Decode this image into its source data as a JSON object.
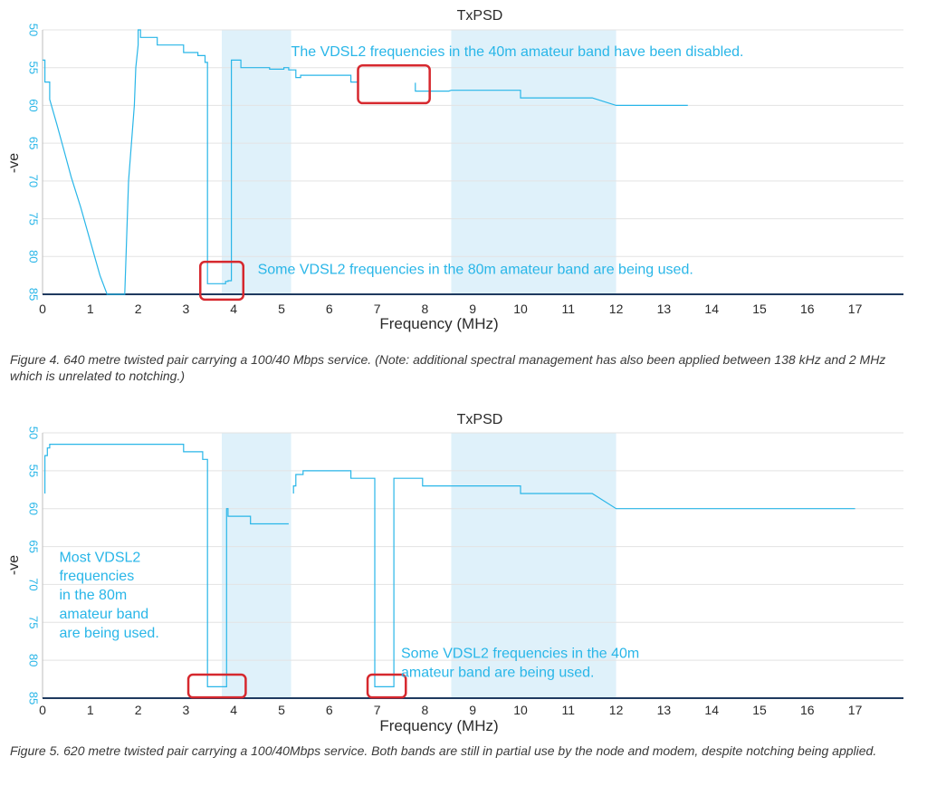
{
  "charts": [
    {
      "caption": "Figure 4. 640 metre twisted pair carrying a 100/40 Mbps service. (Note: additional spectral management has also been applied between 138 kHz and 2 MHz which is unrelated to notching.)"
    },
    {
      "caption": "Figure 5. 620 metre twisted pair carrying a 100/40Mbps service. Both bands are still in partial use by the node and modem, despite notching being applied."
    }
  ],
  "colors": {
    "line": "#29b6e8",
    "band": "#dff1fa",
    "highlight": "#d6282e",
    "axis": "#1f3a5f",
    "text": "#2a2a2a",
    "annotation": "#29b6e8"
  },
  "chart_data": [
    {
      "type": "line",
      "title": "TxPSD",
      "xlabel": "Frequency (MHz)",
      "ylabel": "-ve",
      "xlim": [
        0,
        18
      ],
      "ylim": [
        85,
        50
      ],
      "xticks": [
        "0",
        "1",
        "2",
        "3",
        "4",
        "5",
        "6",
        "7",
        "8",
        "9",
        "10",
        "11",
        "12",
        "13",
        "14",
        "15",
        "16",
        "17"
      ],
      "yticks": [
        "50",
        "55",
        "60",
        "65",
        "70",
        "75",
        "80",
        "85"
      ],
      "grid": "horizontal",
      "shaded_bands": [
        [
          3.75,
          5.2
        ],
        [
          8.55,
          12
        ]
      ],
      "annotations": [
        {
          "text": "The VDSL2 frequencies in the 40m amateur band have been disabled.",
          "x": 5.2,
          "y": 53.5
        },
        {
          "text": "Some VDSL2 frequencies in the 80m amateur band are being used.",
          "x": 4.5,
          "y": 82.3
        }
      ],
      "highlight_boxes": [
        [
          6.6,
          8.1,
          54.7,
          59.7
        ],
        [
          3.3,
          4.2,
          80.7,
          85.7
        ]
      ],
      "series": [
        {
          "x": [
            0,
            0.05,
            0.05,
            0.15,
            0.15,
            0.3,
            0.45,
            0.6,
            0.8,
            1.0,
            1.2,
            1.35,
            1.38,
            1.38,
            1.72,
            1.72,
            1.8,
            1.92,
            1.95,
            2.0,
            2.0,
            2.05,
            2.05,
            2.4,
            2.4,
            2.95,
            2.95,
            3.25,
            3.25,
            3.4,
            3.4,
            3.45,
            3.45,
            3.58,
            3.62,
            3.83,
            3.83,
            3.88,
            3.88,
            3.95,
            3.95,
            4.15,
            4.15,
            4.75,
            4.75,
            5.05,
            5.05,
            5.15,
            5.15,
            5.3,
            5.3,
            5.4,
            5.4,
            6.45,
            6.45,
            6.6
          ],
          "y": [
            54,
            54,
            56.9,
            56.9,
            59.2,
            62.5,
            66,
            69.5,
            73.5,
            78,
            82.5,
            85,
            85,
            85,
            85,
            85,
            70,
            60,
            55,
            52,
            50,
            50,
            51,
            51,
            52,
            52,
            53,
            53,
            53.4,
            53.4,
            54.3,
            54.3,
            83.6,
            83.6,
            83.6,
            83.6,
            83.3,
            83.3,
            83.2,
            83.2,
            54,
            54,
            55,
            55,
            55.2,
            55.2,
            55,
            55,
            55.3,
            55.3,
            56.3,
            56.3,
            56,
            56,
            56.9,
            56.9
          ]
        },
        {
          "x": [
            7.8,
            7.8,
            8.5,
            8.55,
            10,
            10,
            11.2,
            11.5,
            12,
            13.5
          ],
          "y": [
            57,
            58.1,
            58.1,
            58,
            58,
            59,
            59,
            59,
            60,
            60
          ]
        }
      ]
    },
    {
      "type": "line",
      "title": "TxPSD",
      "xlabel": "Frequency (MHz)",
      "ylabel": "-ve",
      "xlim": [
        0,
        18
      ],
      "ylim": [
        85,
        50
      ],
      "xticks": [
        "0",
        "1",
        "2",
        "3",
        "4",
        "5",
        "6",
        "7",
        "8",
        "9",
        "10",
        "11",
        "12",
        "13",
        "14",
        "15",
        "16",
        "17"
      ],
      "yticks": [
        "50",
        "55",
        "60",
        "65",
        "70",
        "75",
        "80",
        "85"
      ],
      "grid": "horizontal",
      "shaded_bands": [
        [
          3.75,
          5.2
        ],
        [
          8.55,
          12
        ]
      ],
      "annotations": [
        {
          "text": "Most VDSL2",
          "x": 0.35,
          "y": 67
        },
        {
          "text": "frequencies",
          "x": 0.35,
          "y": 69.5
        },
        {
          "text": "in the 80m",
          "x": 0.35,
          "y": 72
        },
        {
          "text": "amateur band",
          "x": 0.35,
          "y": 74.5
        },
        {
          "text": "are being used.",
          "x": 0.35,
          "y": 77
        },
        {
          "text": "Some VDSL2 frequencies in the 40m",
          "x": 7.5,
          "y": 79.7
        },
        {
          "text": "amateur band are being used.",
          "x": 7.5,
          "y": 82.2
        }
      ],
      "highlight_boxes": [
        [
          3.05,
          4.25,
          81.9,
          84.9
        ],
        [
          6.8,
          7.6,
          81.9,
          84.9
        ]
      ],
      "series": [
        {
          "x": [
            0.05,
            0.05,
            0.1,
            0.1,
            0.15,
            0.15,
            2.95,
            2.95,
            3.35,
            3.35,
            3.45,
            3.45,
            3.85,
            3.85,
            3.88,
            3.88,
            4.35,
            4.35,
            5.15
          ],
          "y": [
            58,
            53,
            53,
            52,
            52,
            51.5,
            51.5,
            52.5,
            52.5,
            53.5,
            53.5,
            83.5,
            83.5,
            60,
            60,
            61,
            61,
            62,
            62
          ]
        },
        {
          "x": [
            5.25,
            5.25,
            5.3,
            5.3,
            5.45,
            5.45,
            6.45,
            6.45,
            6.95,
            6.95,
            7.25,
            7.25,
            7.35,
            7.35,
            7.95,
            7.95,
            8.5,
            8.55,
            10,
            10,
            11.2,
            11.5,
            12,
            17
          ],
          "y": [
            58,
            57,
            57,
            55.5,
            55.5,
            55,
            55,
            56,
            56,
            83.5,
            83.5,
            83.5,
            83.5,
            56,
            56,
            57,
            57,
            57,
            57,
            58,
            58,
            58,
            60,
            60
          ]
        }
      ]
    }
  ]
}
